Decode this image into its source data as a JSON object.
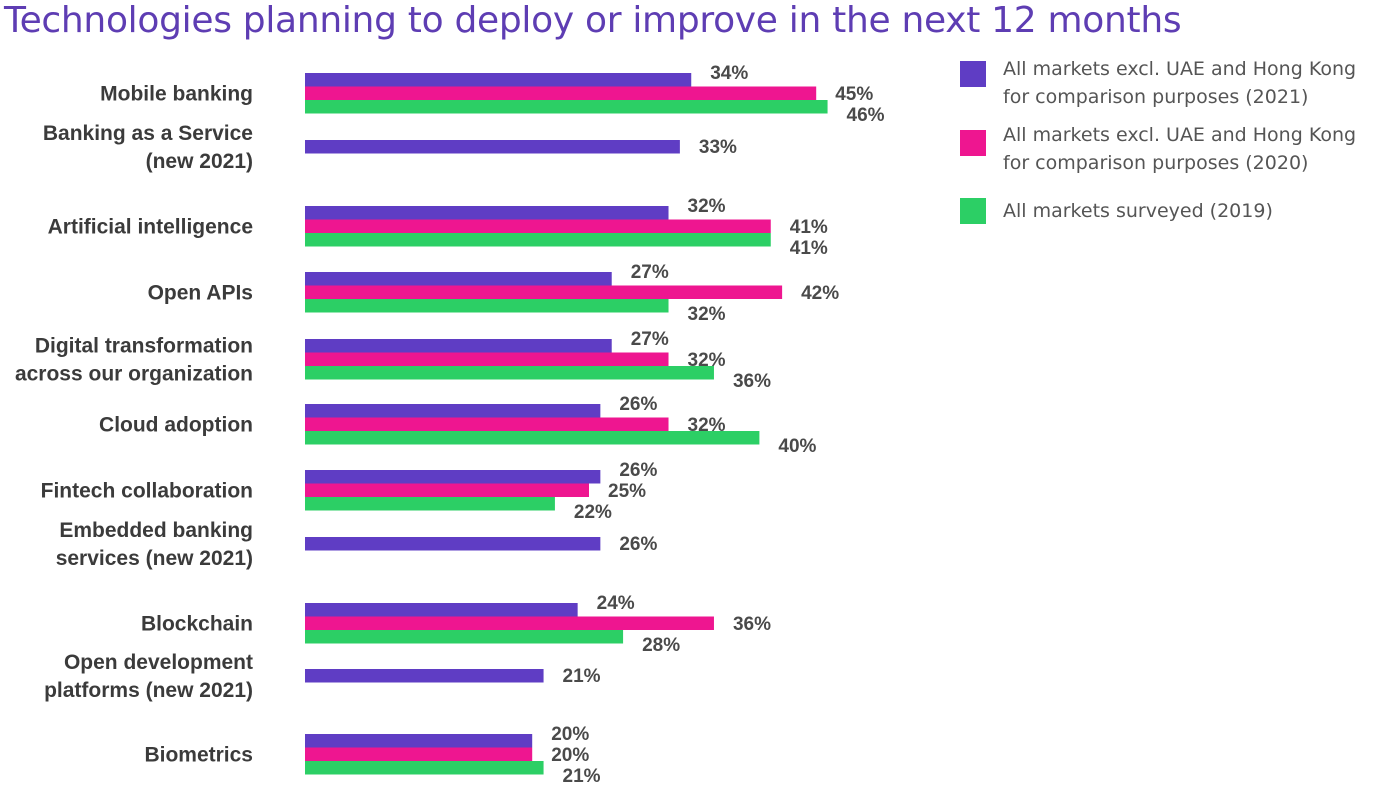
{
  "chart_data": {
    "type": "bar",
    "orientation": "horizontal",
    "title": "Technologies planning to deploy or improve in the next 12 months",
    "categories": [
      [
        "Mobile banking"
      ],
      [
        "Banking as a Service",
        "(new 2021)"
      ],
      [
        "Artificial intelligence"
      ],
      [
        "Open APIs"
      ],
      [
        "Digital transformation",
        "across our organization"
      ],
      [
        "Cloud adoption"
      ],
      [
        "Fintech collaboration"
      ],
      [
        "Embedded banking",
        "services (new 2021)"
      ],
      [
        "Blockchain"
      ],
      [
        "Open development",
        "platforms (new 2021)"
      ],
      [
        "Biometrics"
      ]
    ],
    "series": [
      {
        "name": "All markets excl. UAE and Hong Kong for comparison purposes (2021)",
        "color": "#5f3dc4",
        "values": [
          34,
          33,
          32,
          27,
          27,
          26,
          26,
          26,
          24,
          21,
          20
        ]
      },
      {
        "name": "All markets excl. UAE and Hong Kong for comparison purposes (2020)",
        "color": "#ee1690",
        "values": [
          45,
          null,
          41,
          42,
          32,
          32,
          25,
          null,
          36,
          null,
          20
        ]
      },
      {
        "name": "All markets surveyed (2019)",
        "color": "#2ccf65",
        "values": [
          46,
          null,
          41,
          32,
          36,
          40,
          22,
          null,
          28,
          null,
          21
        ]
      }
    ],
    "value_suffix": "%",
    "legend_position": "top-right",
    "grid": false
  },
  "legend": [
    {
      "lines": [
        "All markets excl. UAE and Hong Kong",
        "for comparison purposes (2021)"
      ],
      "color": "#5f3dc4"
    },
    {
      "lines": [
        "All markets excl. UAE and Hong Kong",
        "for comparison purposes (2020)"
      ],
      "color": "#ee1690"
    },
    {
      "lines": [
        "All markets surveyed (2019)"
      ],
      "color": "#2ccf65"
    }
  ]
}
